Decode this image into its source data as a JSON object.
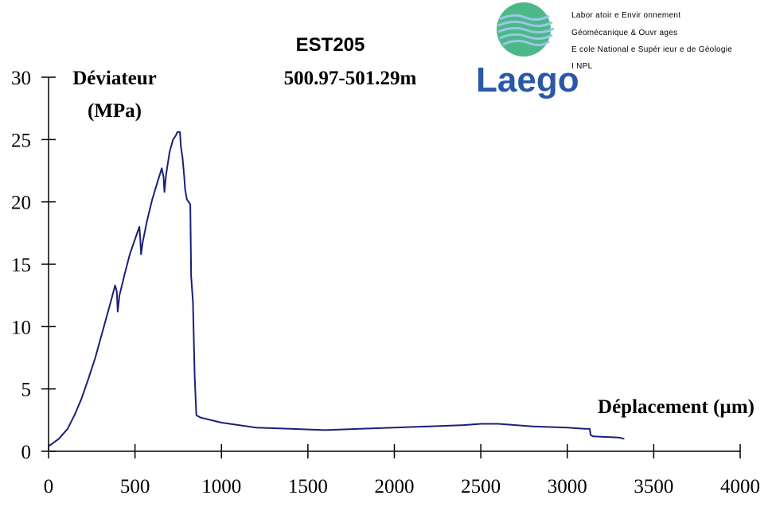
{
  "chart_data": {
    "type": "line",
    "title": "EST205",
    "subtitle": "500.97-501.29m",
    "ylabel_line1": "Déviateur",
    "ylabel_line2": "(MPa)",
    "xlabel": "Déplacement (µm)",
    "xlim": [
      0,
      4000
    ],
    "ylim": [
      0,
      30
    ],
    "x_ticks": [
      0,
      500,
      1000,
      1500,
      2000,
      2500,
      3000,
      3500,
      4000
    ],
    "y_ticks": [
      0,
      5,
      10,
      15,
      20,
      25,
      30
    ],
    "grid": false,
    "series": [
      {
        "name": "EST205",
        "color": "#1a1f7a",
        "points": [
          [
            0,
            0.4
          ],
          [
            60,
            1.0
          ],
          [
            110,
            1.8
          ],
          [
            150,
            2.9
          ],
          [
            190,
            4.2
          ],
          [
            230,
            5.8
          ],
          [
            270,
            7.5
          ],
          [
            300,
            9.0
          ],
          [
            330,
            10.5
          ],
          [
            360,
            12.0
          ],
          [
            385,
            13.3
          ],
          [
            395,
            12.8
          ],
          [
            400,
            11.2
          ],
          [
            410,
            12.5
          ],
          [
            440,
            14.2
          ],
          [
            470,
            15.8
          ],
          [
            500,
            17.0
          ],
          [
            525,
            18.0
          ],
          [
            530,
            17.2
          ],
          [
            535,
            15.8
          ],
          [
            545,
            16.8
          ],
          [
            570,
            18.5
          ],
          [
            600,
            20.2
          ],
          [
            630,
            21.6
          ],
          [
            655,
            22.7
          ],
          [
            665,
            22.0
          ],
          [
            670,
            20.8
          ],
          [
            680,
            22.2
          ],
          [
            700,
            24.0
          ],
          [
            720,
            25.0
          ],
          [
            735,
            25.3
          ],
          [
            745,
            25.6
          ],
          [
            760,
            25.6
          ],
          [
            765,
            24.5
          ],
          [
            775,
            23.5
          ],
          [
            785,
            22.0
          ],
          [
            790,
            21.0
          ],
          [
            800,
            20.2
          ],
          [
            820,
            19.8
          ],
          [
            825,
            14.0
          ],
          [
            835,
            12.0
          ],
          [
            845,
            6.0
          ],
          [
            855,
            2.9
          ],
          [
            880,
            2.7
          ],
          [
            1000,
            2.3
          ],
          [
            1200,
            1.9
          ],
          [
            1400,
            1.8
          ],
          [
            1600,
            1.7
          ],
          [
            1800,
            1.8
          ],
          [
            2000,
            1.9
          ],
          [
            2200,
            2.0
          ],
          [
            2400,
            2.1
          ],
          [
            2500,
            2.2
          ],
          [
            2600,
            2.2
          ],
          [
            2700,
            2.1
          ],
          [
            2800,
            2.0
          ],
          [
            3000,
            1.9
          ],
          [
            3100,
            1.8
          ],
          [
            3130,
            1.8
          ],
          [
            3135,
            1.3
          ],
          [
            3150,
            1.2
          ],
          [
            3300,
            1.1
          ],
          [
            3330,
            1.0
          ]
        ]
      }
    ]
  },
  "logo": {
    "word": "Laego",
    "lines": [
      "Labor atoir e Envir onnement",
      "Géomécanique & Ouvr ages",
      "E cole National e Supér ieur e de Géologie",
      "I NPL"
    ],
    "colors": {
      "globe": "#3ab07a",
      "waves": "#7aa6d8",
      "word": "#2a58a8"
    }
  }
}
